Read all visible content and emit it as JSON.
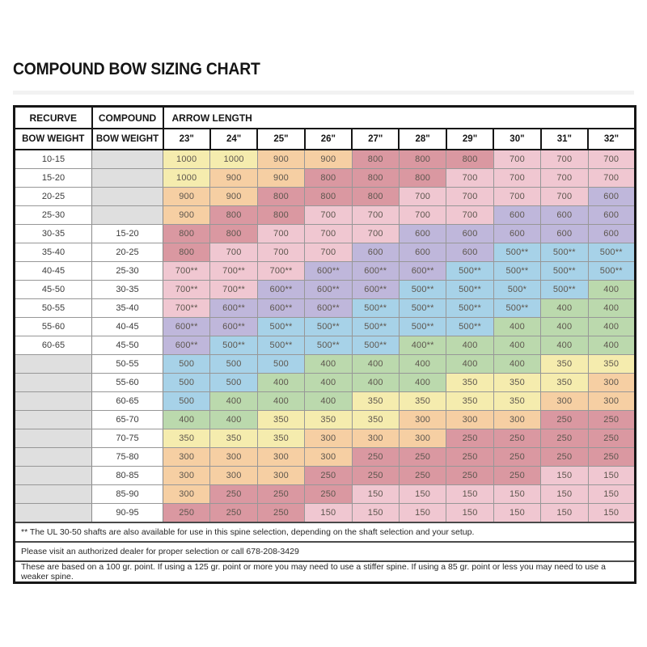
{
  "title": "COMPOUND BOW SIZING CHART",
  "chart_data": {
    "type": "table",
    "title": "COMPOUND BOW SIZING CHART",
    "header_row_1": {
      "recurve": "RECURVE",
      "compound": "COMPOUND",
      "arrow_length": "ARROW LENGTH"
    },
    "header_row_2": {
      "recurve_bow_weight": "BOW WEIGHT",
      "compound_bow_weight": "BOW WEIGHT",
      "arrow_lengths": [
        "23\"",
        "24\"",
        "25\"",
        "26\"",
        "27\"",
        "28\"",
        "29\"",
        "30\"",
        "31\"",
        "32\""
      ]
    },
    "rows": [
      {
        "recurve": "10-15",
        "compound": "",
        "spines": [
          "1000",
          "1000",
          "900",
          "900",
          "800",
          "800",
          "800",
          "700",
          "700",
          "700"
        ]
      },
      {
        "recurve": "15-20",
        "compound": "",
        "spines": [
          "1000",
          "900",
          "900",
          "800",
          "800",
          "800",
          "700",
          "700",
          "700",
          "700"
        ]
      },
      {
        "recurve": "20-25",
        "compound": "",
        "spines": [
          "900",
          "900",
          "800",
          "800",
          "800",
          "700",
          "700",
          "700",
          "700",
          "600"
        ]
      },
      {
        "recurve": "25-30",
        "compound": "",
        "spines": [
          "900",
          "800",
          "800",
          "700",
          "700",
          "700",
          "700",
          "600",
          "600",
          "600"
        ]
      },
      {
        "recurve": "30-35",
        "compound": "15-20",
        "spines": [
          "800",
          "800",
          "700",
          "700",
          "700",
          "600",
          "600",
          "600",
          "600",
          "600"
        ]
      },
      {
        "recurve": "35-40",
        "compound": "20-25",
        "spines": [
          "800",
          "700",
          "700",
          "700",
          "600",
          "600",
          "600",
          "500**",
          "500**",
          "500**"
        ]
      },
      {
        "recurve": "40-45",
        "compound": "25-30",
        "spines": [
          "700**",
          "700**",
          "700**",
          "600**",
          "600**",
          "600**",
          "500**",
          "500**",
          "500**",
          "500**"
        ]
      },
      {
        "recurve": "45-50",
        "compound": "30-35",
        "spines": [
          "700**",
          "700**",
          "600**",
          "600**",
          "600**",
          "500**",
          "500**",
          "500*",
          "500**",
          "400"
        ]
      },
      {
        "recurve": "50-55",
        "compound": "35-40",
        "spines": [
          "700**",
          "600**",
          "600**",
          "600**",
          "500**",
          "500**",
          "500**",
          "500**",
          "400",
          "400"
        ]
      },
      {
        "recurve": "55-60",
        "compound": "40-45",
        "spines": [
          "600**",
          "600**",
          "500**",
          "500**",
          "500**",
          "500**",
          "500**",
          "400",
          "400",
          "400"
        ]
      },
      {
        "recurve": "60-65",
        "compound": "45-50",
        "spines": [
          "600**",
          "500**",
          "500**",
          "500**",
          "500**",
          "400**",
          "400",
          "400",
          "400",
          "400"
        ]
      },
      {
        "recurve": "",
        "compound": "50-55",
        "spines": [
          "500",
          "500",
          "500",
          "400",
          "400",
          "400",
          "400",
          "400",
          "350",
          "350"
        ]
      },
      {
        "recurve": "",
        "compound": "55-60",
        "spines": [
          "500",
          "500",
          "400",
          "400",
          "400",
          "400",
          "350",
          "350",
          "350",
          "300"
        ]
      },
      {
        "recurve": "",
        "compound": "60-65",
        "spines": [
          "500",
          "400",
          "400",
          "400",
          "350",
          "350",
          "350",
          "350",
          "300",
          "300"
        ]
      },
      {
        "recurve": "",
        "compound": "65-70",
        "spines": [
          "400",
          "400",
          "350",
          "350",
          "350",
          "300",
          "300",
          "300",
          "250",
          "250"
        ]
      },
      {
        "recurve": "",
        "compound": "70-75",
        "spines": [
          "350",
          "350",
          "350",
          "300",
          "300",
          "300",
          "250",
          "250",
          "250",
          "250"
        ]
      },
      {
        "recurve": "",
        "compound": "75-80",
        "spines": [
          "300",
          "300",
          "300",
          "300",
          "250",
          "250",
          "250",
          "250",
          "250",
          "250"
        ]
      },
      {
        "recurve": "",
        "compound": "80-85",
        "spines": [
          "300",
          "300",
          "300",
          "250",
          "250",
          "250",
          "250",
          "250",
          "150",
          "150"
        ]
      },
      {
        "recurve": "",
        "compound": "85-90",
        "spines": [
          "300",
          "250",
          "250",
          "250",
          "150",
          "150",
          "150",
          "150",
          "150",
          "150"
        ]
      },
      {
        "recurve": "",
        "compound": "90-95",
        "spines": [
          "250",
          "250",
          "250",
          "150",
          "150",
          "150",
          "150",
          "150",
          "150",
          "150"
        ]
      }
    ],
    "footnotes": [
      "** The UL 30-50 shafts are also available for use in this spine selection, depending on the shaft selection and your setup.",
      "Please visit an authorized dealer for proper selection or call 678-208-3429",
      "These are based on a 100 gr. point. If using a 125 gr. point or more you may need to use a stiffer spine. If using a 85 gr. point or less you may need to use a weaker spine."
    ],
    "value_colors": {
      "1000": "#F5ECAE",
      "900": "#F6CFA3",
      "800": "#DA98A1",
      "700": "#F0C7D1",
      "600": "#BFB7DB",
      "500": "#A7D2E8",
      "400": "#BBD9AD",
      "350": "#F5ECAE",
      "300": "#F6CFA3",
      "250": "#DA98A1",
      "150": "#F0C7D1"
    },
    "empty_cell_color": "#DFDFDF"
  }
}
